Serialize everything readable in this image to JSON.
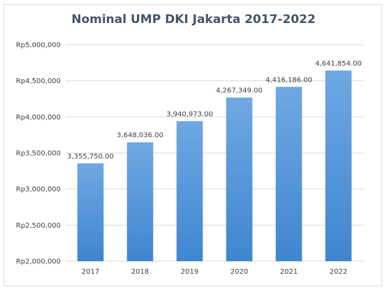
{
  "chart_data": {
    "type": "bar",
    "title": "Nominal UMP DKI Jakarta 2017-2022",
    "categories": [
      "2017",
      "2018",
      "2019",
      "2020",
      "2021",
      "2022"
    ],
    "values": [
      3355750,
      3648036,
      3940973,
      4267349,
      4416186,
      4641854
    ],
    "data_labels": [
      "3,355,750.00",
      "3,648,036.00",
      "3,940,973.00",
      "4,267,349.00",
      "4,416,186.00",
      "4,641,854.00"
    ],
    "ylim": [
      2000000,
      5000000
    ],
    "y_ticks": [
      2000000,
      2500000,
      3000000,
      3500000,
      4000000,
      4500000,
      5000000
    ],
    "y_tick_labels": [
      "Rp2,000,000",
      "Rp2,500,000",
      "Rp3,000,000",
      "Rp3,500,000",
      "Rp4,000,000",
      "Rp4,500,000",
      "Rp5,000,000"
    ],
    "xlabel": "",
    "ylabel": "",
    "grid": true,
    "legend": "none",
    "bar_color_top": "#6fa8e3",
    "bar_color_bottom": "#3f86cf",
    "grid_color": "#d9d9d9",
    "title_color": "#44546a"
  }
}
